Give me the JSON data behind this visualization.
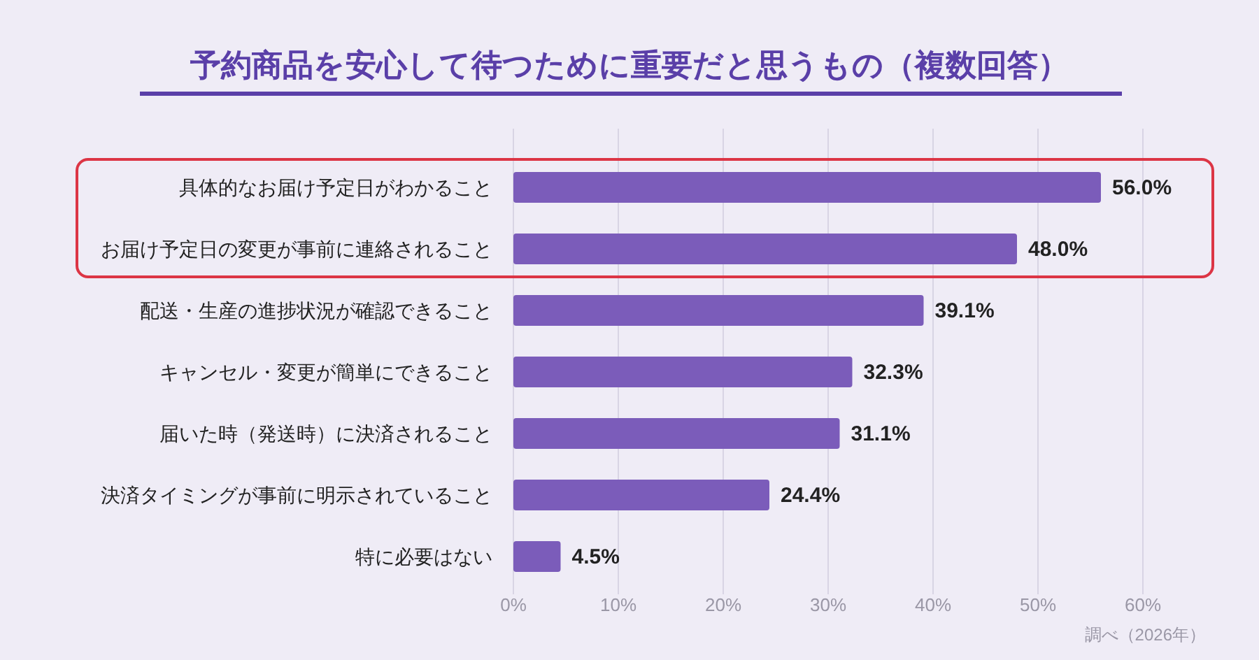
{
  "chart_data": {
    "type": "bar",
    "orientation": "horizontal",
    "title": "予約商品を安心して待つために重要だと思うもの（複数回答）",
    "categories": [
      "具体的なお届け予定日がわかること",
      "お届け予定日の変更が事前に連絡されること",
      "配送・生産の進捗状況が確認できること",
      "キャンセル・変更が簡単にできること",
      "届いた時（発送時）に決済されること",
      "決済タイミングが事前に明示されていること",
      "特に必要はない"
    ],
    "values": [
      56.0,
      48.0,
      39.1,
      32.3,
      31.1,
      24.4,
      4.5
    ],
    "value_labels": [
      "56.0%",
      "48.0%",
      "39.1%",
      "32.3%",
      "31.1%",
      "24.4%",
      "4.5%"
    ],
    "color": "#7b5cba",
    "xlim": [
      0,
      60
    ],
    "xticks": [
      {
        "value": 0,
        "label": "0%"
      },
      {
        "value": 10,
        "label": "10%"
      },
      {
        "value": 20,
        "label": "20%"
      },
      {
        "value": 30,
        "label": "30%"
      },
      {
        "value": 40,
        "label": "40%"
      },
      {
        "value": 50,
        "label": "50%"
      },
      {
        "value": 60,
        "label": "60%"
      }
    ],
    "grid": "x",
    "annotations": [
      "調べ（2026年）"
    ]
  }
}
